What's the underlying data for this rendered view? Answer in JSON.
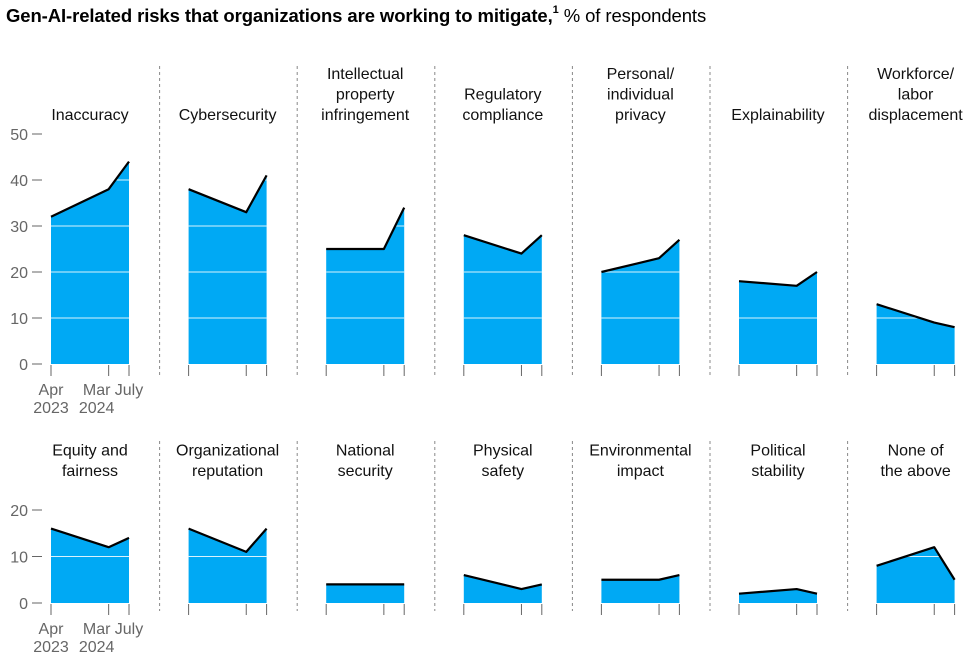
{
  "title": {
    "bold": "Gen-AI-related risks that organizations are working to mitigate,",
    "footnote": "1",
    "suffix": " % of respondents"
  },
  "colors": {
    "area": "#00A9F4",
    "line": "#000000",
    "grid": "#ffffff",
    "axis": "#666666",
    "divider": "#888888"
  },
  "chart_data": {
    "type": "area",
    "x_labels": [
      {
        "top": "Apr",
        "bottom": "2023"
      },
      {
        "top": "Mar",
        "bottom": "2024"
      },
      {
        "top": "July",
        "bottom": ""
      }
    ],
    "rows": [
      {
        "ylim": [
          0,
          50
        ],
        "yticks": [
          0,
          10,
          20,
          30,
          40,
          50
        ],
        "panels": [
          {
            "label": [
              "Inaccuracy"
            ],
            "values": [
              32,
              38,
              44
            ]
          },
          {
            "label": [
              "Cybersecurity"
            ],
            "values": [
              38,
              33,
              41
            ]
          },
          {
            "label": [
              "Intellectual",
              "property",
              "infringement"
            ],
            "values": [
              25,
              25,
              34
            ]
          },
          {
            "label": [
              "Regulatory",
              "compliance"
            ],
            "values": [
              28,
              24,
              28
            ]
          },
          {
            "label": [
              "Personal/",
              "individual",
              "privacy"
            ],
            "values": [
              20,
              23,
              27
            ]
          },
          {
            "label": [
              "Explainability"
            ],
            "values": [
              18,
              17,
              20
            ]
          },
          {
            "label": [
              "Workforce/",
              "labor",
              "displacement"
            ],
            "values": [
              13,
              9,
              8
            ]
          }
        ]
      },
      {
        "ylim": [
          0,
          20
        ],
        "yticks": [
          0,
          10,
          20
        ],
        "panels": [
          {
            "label": [
              "Equity and",
              "fairness"
            ],
            "values": [
              16,
              12,
              14
            ]
          },
          {
            "label": [
              "Organizational",
              "reputation"
            ],
            "values": [
              16,
              11,
              16
            ]
          },
          {
            "label": [
              "National",
              "security"
            ],
            "values": [
              4,
              4,
              4
            ]
          },
          {
            "label": [
              "Physical",
              "safety"
            ],
            "values": [
              6,
              3,
              4
            ]
          },
          {
            "label": [
              "Environmental",
              "impact"
            ],
            "values": [
              5,
              5,
              6
            ]
          },
          {
            "label": [
              "Political",
              "stability"
            ],
            "values": [
              2,
              3,
              2
            ]
          },
          {
            "label": [
              "None of",
              "the above"
            ],
            "values": [
              8,
              12,
              5
            ]
          }
        ]
      }
    ]
  }
}
